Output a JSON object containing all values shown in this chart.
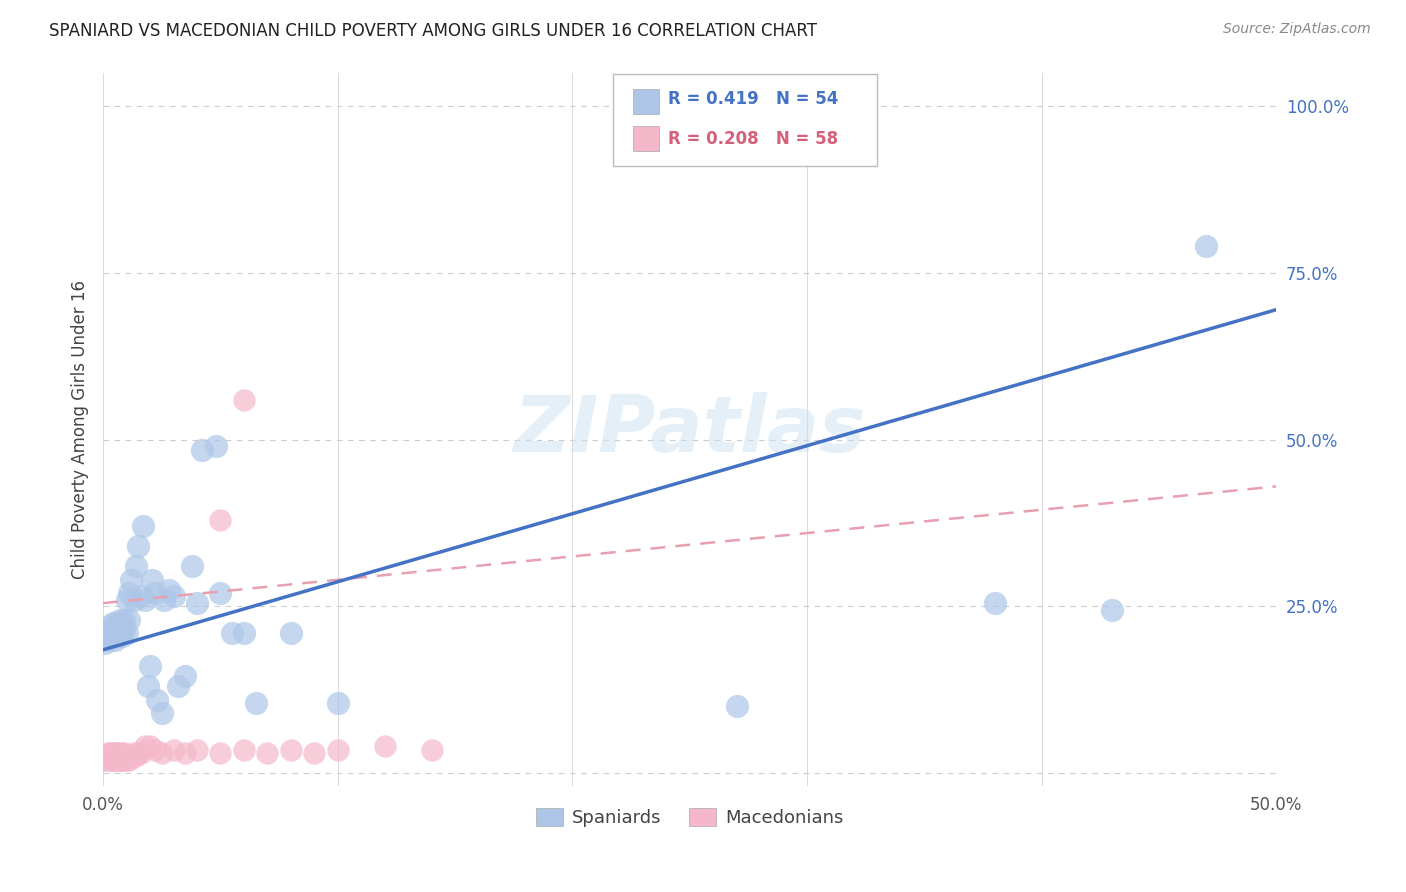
{
  "title": "SPANIARD VS MACEDONIAN CHILD POVERTY AMONG GIRLS UNDER 16 CORRELATION CHART",
  "source": "Source: ZipAtlas.com",
  "ylabel": "Child Poverty Among Girls Under 16",
  "watermark": "ZIPatlas",
  "xlim": [
    0.0,
    0.5
  ],
  "ylim": [
    -0.02,
    1.05
  ],
  "spaniards_color": "#adc6e8",
  "macedonians_color": "#f5b8cb",
  "trend_blue": "#4472c4",
  "trend_pink_dashed": "#e8a0b0",
  "legend_R_blue": "R = 0.419",
  "legend_N_blue": "N = 54",
  "legend_R_pink": "R = 0.208",
  "legend_N_pink": "N = 58",
  "sp_trend_x0": 0.0,
  "sp_trend_y0": 0.185,
  "sp_trend_x1": 0.5,
  "sp_trend_y1": 0.695,
  "mac_trend_x0": 0.0,
  "mac_trend_y0": 0.255,
  "mac_trend_x1": 0.5,
  "mac_trend_y1": 0.43,
  "spaniards_x": [
    0.001,
    0.002,
    0.002,
    0.003,
    0.003,
    0.004,
    0.004,
    0.005,
    0.005,
    0.006,
    0.006,
    0.007,
    0.007,
    0.007,
    0.008,
    0.008,
    0.009,
    0.009,
    0.01,
    0.01,
    0.011,
    0.011,
    0.012,
    0.013,
    0.014,
    0.015,
    0.016,
    0.017,
    0.018,
    0.019,
    0.02,
    0.021,
    0.022,
    0.023,
    0.025,
    0.026,
    0.028,
    0.03,
    0.032,
    0.035,
    0.038,
    0.04,
    0.042,
    0.048,
    0.05,
    0.055,
    0.06,
    0.065,
    0.08,
    0.1,
    0.27,
    0.38,
    0.43,
    0.47
  ],
  "spaniards_y": [
    0.195,
    0.2,
    0.21,
    0.205,
    0.22,
    0.215,
    0.225,
    0.2,
    0.215,
    0.205,
    0.22,
    0.21,
    0.215,
    0.23,
    0.205,
    0.225,
    0.215,
    0.23,
    0.21,
    0.26,
    0.23,
    0.27,
    0.29,
    0.26,
    0.31,
    0.34,
    0.265,
    0.37,
    0.26,
    0.13,
    0.16,
    0.29,
    0.27,
    0.11,
    0.09,
    0.26,
    0.275,
    0.265,
    0.13,
    0.145,
    0.31,
    0.255,
    0.485,
    0.49,
    0.27,
    0.21,
    0.21,
    0.105,
    0.21,
    0.105,
    0.1,
    0.255,
    0.245,
    0.79
  ],
  "macedonians_x": [
    0.001,
    0.001,
    0.002,
    0.002,
    0.002,
    0.003,
    0.003,
    0.003,
    0.003,
    0.004,
    0.004,
    0.004,
    0.004,
    0.004,
    0.005,
    0.005,
    0.005,
    0.005,
    0.006,
    0.006,
    0.006,
    0.006,
    0.007,
    0.007,
    0.007,
    0.007,
    0.008,
    0.008,
    0.008,
    0.009,
    0.009,
    0.009,
    0.01,
    0.01,
    0.011,
    0.011,
    0.012,
    0.013,
    0.014,
    0.015,
    0.016,
    0.018,
    0.02,
    0.022,
    0.025,
    0.03,
    0.035,
    0.04,
    0.05,
    0.06,
    0.07,
    0.08,
    0.09,
    0.1,
    0.12,
    0.14,
    0.05,
    0.06
  ],
  "macedonians_y": [
    0.02,
    0.02,
    0.025,
    0.03,
    0.025,
    0.02,
    0.025,
    0.03,
    0.025,
    0.02,
    0.025,
    0.03,
    0.02,
    0.025,
    0.02,
    0.025,
    0.03,
    0.02,
    0.02,
    0.025,
    0.03,
    0.02,
    0.02,
    0.025,
    0.03,
    0.02,
    0.02,
    0.025,
    0.03,
    0.02,
    0.025,
    0.03,
    0.02,
    0.025,
    0.02,
    0.025,
    0.025,
    0.03,
    0.025,
    0.03,
    0.03,
    0.04,
    0.04,
    0.035,
    0.03,
    0.035,
    0.03,
    0.035,
    0.03,
    0.035,
    0.03,
    0.035,
    0.03,
    0.035,
    0.04,
    0.035,
    0.38,
    0.56
  ]
}
